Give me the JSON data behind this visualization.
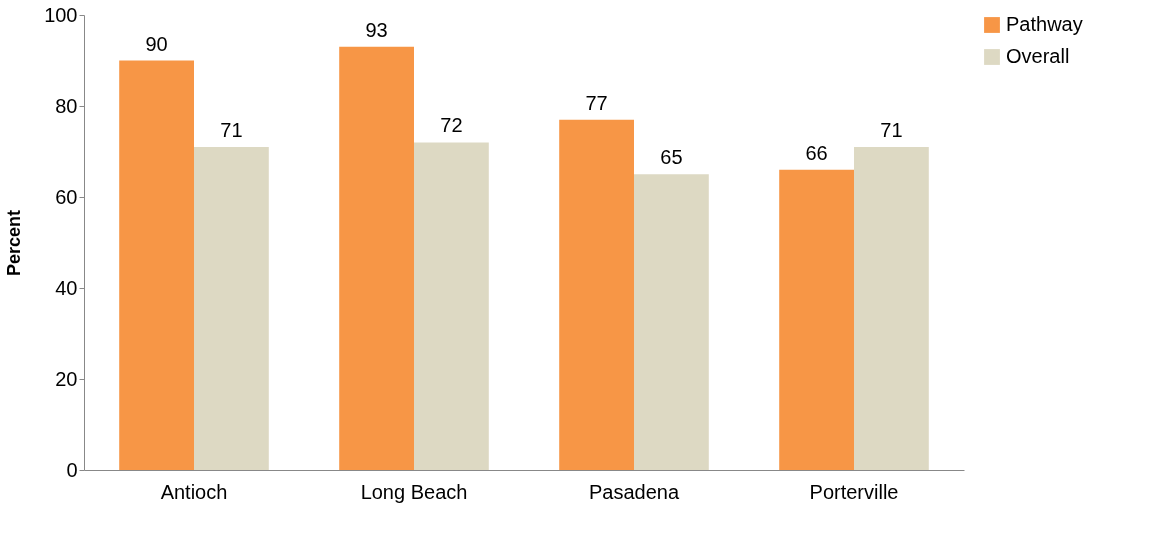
{
  "chart_data": {
    "type": "bar",
    "ylabel": "Percent",
    "categories": [
      "Antioch",
      "Long Beach",
      "Pasadena",
      "Porterville"
    ],
    "series": [
      {
        "name": "Pathway",
        "color": "#f79646",
        "values": [
          90,
          93,
          77,
          66
        ]
      },
      {
        "name": "Overall",
        "color": "#ddd9c3",
        "values": [
          71,
          72,
          65,
          71
        ]
      }
    ],
    "ylim": [
      0,
      100
    ],
    "yticks": [
      0,
      20,
      40,
      60,
      80,
      100
    ],
    "grid": false,
    "legend": "right",
    "data_labels": true
  }
}
